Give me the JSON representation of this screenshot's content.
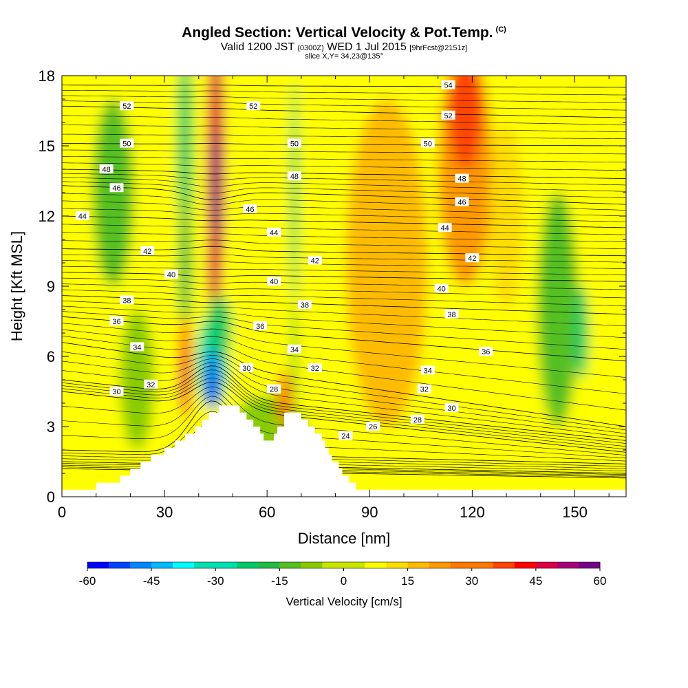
{
  "title": {
    "main": "Angled Section: Vertical Velocity & Pot.Temp.",
    "copyright": "(C)",
    "valid_prefix": "Valid 1200 JST",
    "valid_utc": "(0300Z)",
    "valid_date": "WED 1 Jul 2015",
    "fcst": "[9hrFcst@2151z]",
    "slice": "slice X,Y= 34,23@135°"
  },
  "chart_data": {
    "type": "heatmap",
    "xlabel": "Distance [nm]",
    "ylabel": "Height [Kft MSL]",
    "xlim": [
      0,
      165
    ],
    "ylim": [
      0,
      18
    ],
    "x_ticks": [
      "0",
      "30",
      "60",
      "90",
      "120",
      "150"
    ],
    "y_ticks": [
      "0",
      "3",
      "6",
      "9",
      "12",
      "15",
      "18"
    ],
    "colorbar": {
      "label": "Vertical Velocity [cm/s]",
      "ticks": [
        "-60",
        "-45",
        "-30",
        "-15",
        "0",
        "15",
        "30",
        "45",
        "60"
      ],
      "range": [
        -60,
        60
      ],
      "colors": [
        "#0000ff",
        "#0044ff",
        "#0088ff",
        "#00bbff",
        "#00ffff",
        "#00e0b0",
        "#00cc66",
        "#22bb44",
        "#55c022",
        "#88cc00",
        "#c8e600",
        "#ffff00",
        "#ffdd00",
        "#ffbb00",
        "#ff9900",
        "#ff7700",
        "#ff4400",
        "#ff0000",
        "#dd0044",
        "#aa0077",
        "#770088"
      ]
    },
    "terrain_kft": [
      [
        0,
        0.3
      ],
      [
        10,
        0.3
      ],
      [
        10,
        0.6
      ],
      [
        17,
        0.6
      ],
      [
        17,
        0.9
      ],
      [
        20,
        0.9
      ],
      [
        20,
        1.2
      ],
      [
        23,
        1.2
      ],
      [
        23,
        1.5
      ],
      [
        26,
        1.5
      ],
      [
        26,
        1.8
      ],
      [
        30,
        1.8
      ],
      [
        30,
        2.1
      ],
      [
        33,
        2.1
      ],
      [
        33,
        2.4
      ],
      [
        36,
        2.4
      ],
      [
        36,
        2.7
      ],
      [
        39,
        2.7
      ],
      [
        39,
        3.0
      ],
      [
        41,
        3.0
      ],
      [
        41,
        3.3
      ],
      [
        43,
        3.3
      ],
      [
        43,
        3.6
      ],
      [
        46,
        3.6
      ],
      [
        46,
        3.9
      ],
      [
        52,
        3.9
      ],
      [
        52,
        3.6
      ],
      [
        54,
        3.6
      ],
      [
        54,
        3.3
      ],
      [
        56,
        3.3
      ],
      [
        56,
        3.0
      ],
      [
        58,
        3.0
      ],
      [
        58,
        2.7
      ],
      [
        59,
        2.7
      ],
      [
        59,
        2.4
      ],
      [
        62,
        2.4
      ],
      [
        62,
        2.7
      ],
      [
        63,
        2.7
      ],
      [
        63,
        3.0
      ],
      [
        65,
        3.0
      ],
      [
        65,
        3.6
      ],
      [
        70,
        3.6
      ],
      [
        70,
        3.3
      ],
      [
        72,
        3.3
      ],
      [
        72,
        3.0
      ],
      [
        74,
        3.0
      ],
      [
        74,
        2.7
      ],
      [
        76,
        2.7
      ],
      [
        76,
        2.4
      ],
      [
        77,
        2.4
      ],
      [
        77,
        2.1
      ],
      [
        78,
        2.1
      ],
      [
        78,
        1.8
      ],
      [
        79,
        1.8
      ],
      [
        79,
        1.5
      ],
      [
        81,
        1.5
      ],
      [
        81,
        1.2
      ],
      [
        82,
        1.2
      ],
      [
        82,
        0.9
      ],
      [
        84,
        0.9
      ],
      [
        84,
        0.6
      ],
      [
        86,
        0.6
      ],
      [
        86,
        0.3
      ],
      [
        165,
        0.3
      ]
    ],
    "isotherms": [
      {
        "label": "24",
        "lx": 83,
        "ly": 2.6,
        "y0": 1.2,
        "yt": 2.0,
        "y1": 0.8
      },
      {
        "label": "26",
        "lx": 91,
        "ly": 3.0,
        "y0": 1.5,
        "yt": 2.3,
        "y1": 1.0
      },
      {
        "label": "28",
        "lx": 62,
        "ly": 4.6,
        "y0": 2.0,
        "yt": 4.1,
        "y1": 1.4
      },
      {
        "label": "30",
        "lx": 16,
        "ly": 4.5,
        "y0": 4.5,
        "yt": 4.9,
        "y1": 1.9
      },
      {
        "label": "32",
        "lx": 26,
        "ly": 4.8,
        "y0": 5.0,
        "yt": 5.6,
        "y1": 2.4
      },
      {
        "label": "34",
        "lx": 22,
        "ly": 6.4,
        "y0": 6.6,
        "yt": 6.2,
        "y1": 3.0
      },
      {
        "label": "36",
        "lx": 16,
        "ly": 7.5,
        "y0": 7.7,
        "yt": 7.5,
        "y1": 5.8
      },
      {
        "label": "38",
        "lx": 19,
        "ly": 8.4,
        "y0": 8.6,
        "yt": 8.3,
        "y1": 7.8
      },
      {
        "label": "40",
        "lx": 32,
        "ly": 9.5,
        "y0": 9.6,
        "yt": 9.4,
        "y1": 9.2
      },
      {
        "label": "42",
        "lx": 25,
        "ly": 10.5,
        "y0": 10.6,
        "yt": 10.7,
        "y1": 10.3
      },
      {
        "label": "44",
        "lx": 6,
        "ly": 12.0,
        "y0": 12.0,
        "yt": 11.8,
        "y1": 11.5
      },
      {
        "label": "46",
        "lx": 16,
        "ly": 13.2,
        "y0": 13.3,
        "yt": 12.7,
        "y1": 12.5
      },
      {
        "label": "48",
        "lx": 13,
        "ly": 14.0,
        "y0": 14.0,
        "yt": 13.8,
        "y1": 13.6
      },
      {
        "label": "50",
        "lx": 19,
        "ly": 15.1,
        "y0": 15.1,
        "yt": 15.1,
        "y1": 15.0
      },
      {
        "label": "52",
        "lx": 19,
        "ly": 16.7,
        "y0": 16.7,
        "yt": 16.6,
        "y1": 16.2
      },
      {
        "label": "54",
        "lx": 113,
        "ly": 17.6,
        "y0": 17.6,
        "yt": 17.6,
        "y1": 17.5
      }
    ],
    "extra_labels": [
      {
        "label": "52",
        "x": 56,
        "y": 16.7
      },
      {
        "label": "50",
        "x": 68,
        "y": 15.1
      },
      {
        "label": "48",
        "x": 68,
        "y": 13.7
      },
      {
        "label": "46",
        "x": 55,
        "y": 12.3
      },
      {
        "label": "44",
        "x": 62,
        "y": 11.3
      },
      {
        "label": "42",
        "x": 74,
        "y": 10.1
      },
      {
        "label": "40",
        "x": 62,
        "y": 9.2
      },
      {
        "label": "38",
        "x": 71,
        "y": 8.2
      },
      {
        "label": "36",
        "x": 58,
        "y": 7.3
      },
      {
        "label": "34",
        "x": 68,
        "y": 6.3
      },
      {
        "label": "32",
        "x": 74,
        "y": 5.5
      },
      {
        "label": "30",
        "x": 54,
        "y": 5.5
      },
      {
        "label": "52",
        "x": 113,
        "y": 16.3
      },
      {
        "label": "50",
        "x": 107,
        "y": 15.1
      },
      {
        "label": "48",
        "x": 117,
        "y": 13.6
      },
      {
        "label": "46",
        "x": 117,
        "y": 12.6
      },
      {
        "label": "44",
        "x": 112,
        "y": 11.5
      },
      {
        "label": "42",
        "x": 120,
        "y": 10.2
      },
      {
        "label": "40",
        "x": 111,
        "y": 8.9
      },
      {
        "label": "38",
        "x": 114,
        "y": 7.8
      },
      {
        "label": "36",
        "x": 124,
        "y": 6.2
      },
      {
        "label": "34",
        "x": 107,
        "y": 5.4
      },
      {
        "label": "32",
        "x": 106,
        "y": 4.6
      },
      {
        "label": "30",
        "x": 114,
        "y": 3.8
      },
      {
        "label": "28",
        "x": 104,
        "y": 3.3
      }
    ],
    "velocity_blobs": [
      {
        "x": 36,
        "y": 15,
        "rx": 2.2,
        "ry": 4.2,
        "value": -25
      },
      {
        "x": 36,
        "y": 10,
        "rx": 1.8,
        "ry": 3.0,
        "value": -20
      },
      {
        "x": 68,
        "y": 13,
        "rx": 1.0,
        "ry": 4.8,
        "value": -22
      },
      {
        "x": 68,
        "y": 6,
        "rx": 0.8,
        "ry": 2.5,
        "value": -15
      },
      {
        "x": 15,
        "y": 13,
        "rx": 6,
        "ry": 4,
        "value": -10
      },
      {
        "x": 22,
        "y": 5,
        "rx": 5,
        "ry": 3,
        "value": -8
      },
      {
        "x": 145,
        "y": 8,
        "rx": 6,
        "ry": 5,
        "value": -12
      },
      {
        "x": 152,
        "y": 7,
        "rx": 2,
        "ry": 2,
        "value": -22
      },
      {
        "x": 60,
        "y": 2.5,
        "rx": 12,
        "ry": 1.8,
        "value": -6
      },
      {
        "x": 95,
        "y": 10,
        "rx": 12,
        "ry": 7,
        "value": 15
      },
      {
        "x": 118,
        "y": 14,
        "rx": 8,
        "ry": 5,
        "value": 25
      },
      {
        "x": 118,
        "y": 16.5,
        "rx": 5,
        "ry": 2.5,
        "value": 33
      },
      {
        "x": 130,
        "y": 12,
        "rx": 5,
        "ry": 4,
        "value": 10
      },
      {
        "x": 45,
        "y": 14,
        "rx": 2.5,
        "ry": 6,
        "value": 45
      },
      {
        "x": 45,
        "y": 13,
        "rx": 1.2,
        "ry": 2.8,
        "value": 60
      },
      {
        "x": 44,
        "y": 10,
        "rx": 1.3,
        "ry": 1.8,
        "value": 45
      },
      {
        "x": 36,
        "y": 5.5,
        "rx": 1.8,
        "ry": 2.2,
        "value": 35
      },
      {
        "x": 36,
        "y": 5.0,
        "rx": 0.9,
        "ry": 1.2,
        "value": 48
      },
      {
        "x": 44,
        "y": 5.8,
        "rx": 4.5,
        "ry": 2.0,
        "value": -30
      },
      {
        "x": 46,
        "y": 7.2,
        "rx": 3.5,
        "ry": 1.4,
        "value": -24
      },
      {
        "x": 44,
        "y": 5.0,
        "rx": 2.2,
        "ry": 1.3,
        "value": -50
      },
      {
        "x": 44,
        "y": 4.6,
        "rx": 1.2,
        "ry": 0.8,
        "value": -60
      },
      {
        "x": 65,
        "y": 4.2,
        "rx": 2,
        "ry": 1.2,
        "value": 28
      }
    ]
  }
}
